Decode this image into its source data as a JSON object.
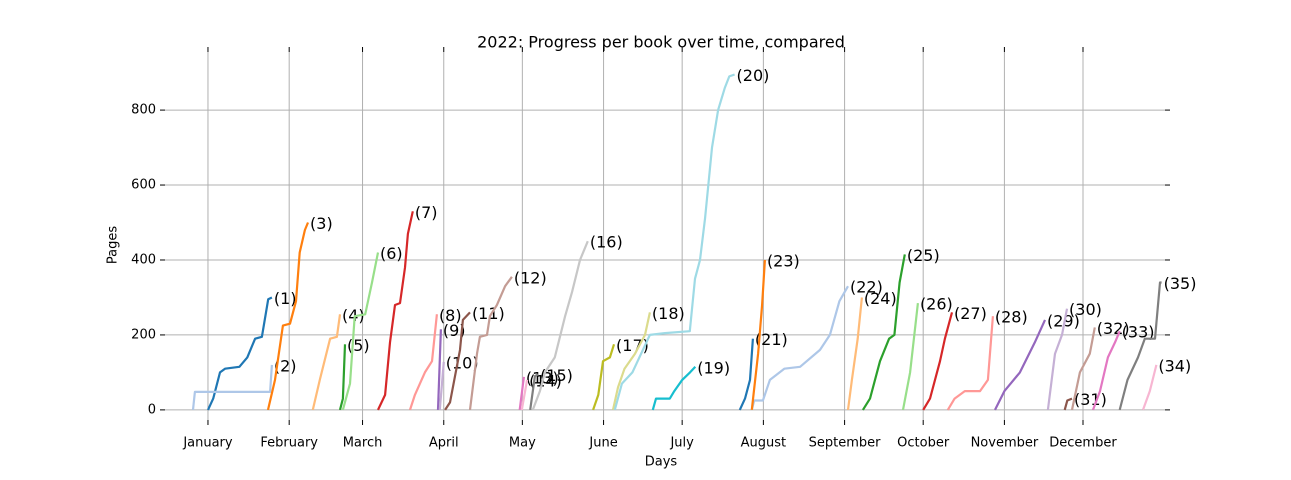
{
  "chart_data": {
    "type": "line",
    "title": "2022: Progress per book over time, compared",
    "xlabel": "Days",
    "ylabel": "Pages",
    "xlim": [
      -16.4,
      365.3
    ],
    "ylim": [
      -27,
      955
    ],
    "xticks": [
      {
        "value": 0,
        "label": "January"
      },
      {
        "value": 31,
        "label": "February"
      },
      {
        "value": 59,
        "label": "March"
      },
      {
        "value": 90,
        "label": "April"
      },
      {
        "value": 120,
        "label": "May"
      },
      {
        "value": 151,
        "label": "June"
      },
      {
        "value": 181,
        "label": "July"
      },
      {
        "value": 212,
        "label": "August"
      },
      {
        "value": 243,
        "label": "September"
      },
      {
        "value": 273,
        "label": "October"
      },
      {
        "value": 304,
        "label": "November"
      },
      {
        "value": 334,
        "label": "December"
      }
    ],
    "yticks": [
      0,
      200,
      400,
      600,
      800
    ],
    "grid": true,
    "series": [
      {
        "name": "(1)",
        "color": "#1f77b4",
        "x": [
          0,
          2,
          4.6,
          6.5,
          12,
          15,
          18,
          20.6,
          23,
          24.4
        ],
        "values": [
          0,
          30,
          100,
          110,
          115,
          140,
          190,
          195,
          295,
          300
        ]
      },
      {
        "name": "(2)",
        "color": "#aec7e8",
        "x": [
          -5.7,
          -5,
          23.7,
          24.4
        ],
        "values": [
          0,
          48,
          48,
          120
        ]
      },
      {
        "name": "(3)",
        "color": "#ff7f0e",
        "x": [
          22.9,
          25.6,
          28.6,
          31.3,
          33.6,
          35,
          37,
          38.2
        ],
        "values": [
          0,
          80,
          225,
          230,
          290,
          420,
          480,
          500
        ]
      },
      {
        "name": "(4)",
        "color": "#ffbb78",
        "x": [
          40,
          42.7,
          46.6,
          49.2,
          50.4
        ],
        "values": [
          0,
          80,
          190,
          195,
          255
        ]
      },
      {
        "name": "(5)",
        "color": "#2ca02c",
        "x": [
          50.4,
          51.5,
          52.3
        ],
        "values": [
          0,
          30,
          175
        ]
      },
      {
        "name": "(6)",
        "color": "#98df8a",
        "x": [
          51.5,
          54.2,
          56,
          60,
          62.6,
          64.9
        ],
        "values": [
          0,
          70,
          250,
          255,
          340,
          420
        ]
      },
      {
        "name": "(7)",
        "color": "#d62728",
        "x": [
          64.9,
          67.6,
          69.5,
          71.4,
          73.3,
          75.2,
          76.3,
          78.2
        ],
        "values": [
          0,
          40,
          180,
          280,
          285,
          380,
          470,
          530
        ]
      },
      {
        "name": "(8)",
        "color": "#ff9896",
        "x": [
          77.1,
          79,
          82.8,
          85.5,
          87.4
        ],
        "values": [
          0,
          40,
          100,
          130,
          255
        ]
      },
      {
        "name": "(9)",
        "color": "#9467bd",
        "x": [
          87.8,
          88.9
        ],
        "values": [
          0,
          215
        ]
      },
      {
        "name": "(10)",
        "color": "#c5b0d5",
        "x": [
          88.5,
          90
        ],
        "values": [
          0,
          128
        ]
      },
      {
        "name": "(11)",
        "color": "#8c564b",
        "x": [
          90.5,
          92.4,
          94.3,
          96.2,
          97.3,
          100
        ],
        "values": [
          0,
          20,
          90,
          160,
          240,
          260
        ]
      },
      {
        "name": "(12)",
        "color": "#c49c94",
        "x": [
          100,
          102.7,
          103.8,
          106.5,
          107.6,
          110.3,
          113.4,
          116
        ],
        "values": [
          0,
          150,
          195,
          200,
          250,
          280,
          330,
          355
        ]
      },
      {
        "name": "(13)",
        "color": "#e377c2",
        "x": [
          119,
          120.6
        ],
        "values": [
          0,
          88
        ]
      },
      {
        "name": "(14)",
        "color": "#f7b6d2",
        "x": [
          119.8,
          121.8
        ],
        "values": [
          0,
          80
        ]
      },
      {
        "name": "(15)",
        "color": "#7f7f7f",
        "x": [
          123,
          124.8,
          126
        ],
        "values": [
          0,
          90,
          95
        ]
      },
      {
        "name": "(16)",
        "color": "#c7c7c7",
        "x": [
          124,
          126.7,
          128.6,
          132.4,
          136.3,
          139,
          142,
          145
        ],
        "values": [
          0,
          50,
          100,
          140,
          250,
          315,
          400,
          450
        ]
      },
      {
        "name": "(17)",
        "color": "#bcbd22",
        "x": [
          147,
          149,
          150.8,
          153.4,
          155
        ],
        "values": [
          0,
          40,
          130,
          140,
          175
        ]
      },
      {
        "name": "(18)",
        "color": "#dbdb8d",
        "x": [
          154.6,
          156.5,
          159,
          163,
          166.8,
          168.7
        ],
        "values": [
          0,
          60,
          110,
          150,
          200,
          260
        ]
      },
      {
        "name": "(19)",
        "color": "#17becf",
        "x": [
          169.8,
          171,
          176.3,
          178,
          181,
          184,
          186
        ],
        "values": [
          0,
          30,
          30,
          50,
          80,
          100,
          115
        ]
      },
      {
        "name": "(20)",
        "color": "#9edae5",
        "x": [
          155.3,
          158,
          162,
          168.7,
          174.4,
          183.9,
          185.9,
          187.8,
          189.7,
          192.4,
          194.7,
          197.3,
          199,
          201
        ],
        "values": [
          0,
          70,
          100,
          200,
          205,
          210,
          350,
          400,
          510,
          700,
          800,
          860,
          890,
          895
        ]
      },
      {
        "name": "(21)",
        "color": "#1f77b4",
        "x": [
          203,
          205,
          206.9,
          208
        ],
        "values": [
          0,
          30,
          80,
          190
        ]
      },
      {
        "name": "(22)",
        "color": "#aec7e8",
        "x": [
          207.6,
          208.5,
          211.8,
          214.5,
          220,
          226,
          233.6,
          237.4,
          241,
          244.3
        ],
        "values": [
          0,
          25,
          25,
          80,
          110,
          115,
          160,
          200,
          290,
          330
        ]
      },
      {
        "name": "(23)",
        "color": "#ff7f0e",
        "x": [
          207.6,
          210,
          211.5,
          212.6
        ],
        "values": [
          0,
          150,
          280,
          400
        ]
      },
      {
        "name": "(24)",
        "color": "#ffbb78",
        "x": [
          244.3,
          245.8,
          248,
          249.6
        ],
        "values": [
          0,
          80,
          190,
          300
        ]
      },
      {
        "name": "(25)",
        "color": "#2ca02c",
        "x": [
          250,
          252.7,
          256.5,
          260,
          262,
          264,
          266
        ],
        "values": [
          0,
          30,
          130,
          190,
          200,
          340,
          415
        ]
      },
      {
        "name": "(26)",
        "color": "#98df8a",
        "x": [
          265.3,
          268,
          271
        ],
        "values": [
          0,
          100,
          285
        ]
      },
      {
        "name": "(27)",
        "color": "#d62728",
        "x": [
          273,
          275.6,
          279.4,
          281.3,
          284
        ],
        "values": [
          0,
          30,
          130,
          190,
          260
        ]
      },
      {
        "name": "(28)",
        "color": "#ff9896",
        "x": [
          282.4,
          285,
          288.9,
          294.7,
          297.7,
          299.6
        ],
        "values": [
          0,
          30,
          50,
          50,
          80,
          250
        ]
      },
      {
        "name": "(29)",
        "color": "#9467bd",
        "x": [
          300.4,
          304,
          309.9,
          315.6,
          319.5
        ],
        "values": [
          0,
          50,
          100,
          180,
          240
        ]
      },
      {
        "name": "(30)",
        "color": "#c5b0d5",
        "x": [
          320.6,
          323.3,
          326,
          327.9
        ],
        "values": [
          0,
          150,
          200,
          270
        ]
      },
      {
        "name": "(31)",
        "color": "#8c564b",
        "x": [
          327,
          328,
          329.8
        ],
        "values": [
          0,
          25,
          30
        ]
      },
      {
        "name": "(32)",
        "color": "#c49c94",
        "x": [
          329.8,
          332.8,
          336.6,
          338.5
        ],
        "values": [
          0,
          100,
          150,
          220
        ]
      },
      {
        "name": "(33)",
        "color": "#e377c2",
        "x": [
          337.8,
          340.5,
          343.5,
          346.2,
          348
        ],
        "values": [
          0,
          50,
          140,
          180,
          210
        ]
      },
      {
        "name": "(34)",
        "color": "#f7b6d2",
        "x": [
          356.9,
          359.5,
          362
        ],
        "values": [
          0,
          50,
          120
        ]
      },
      {
        "name": "(35)",
        "color": "#7f7f7f",
        "x": [
          348,
          351,
          355,
          357.6,
          361.5,
          363.4,
          364
        ],
        "values": [
          0,
          80,
          140,
          190,
          190,
          340,
          340
        ]
      }
    ]
  }
}
